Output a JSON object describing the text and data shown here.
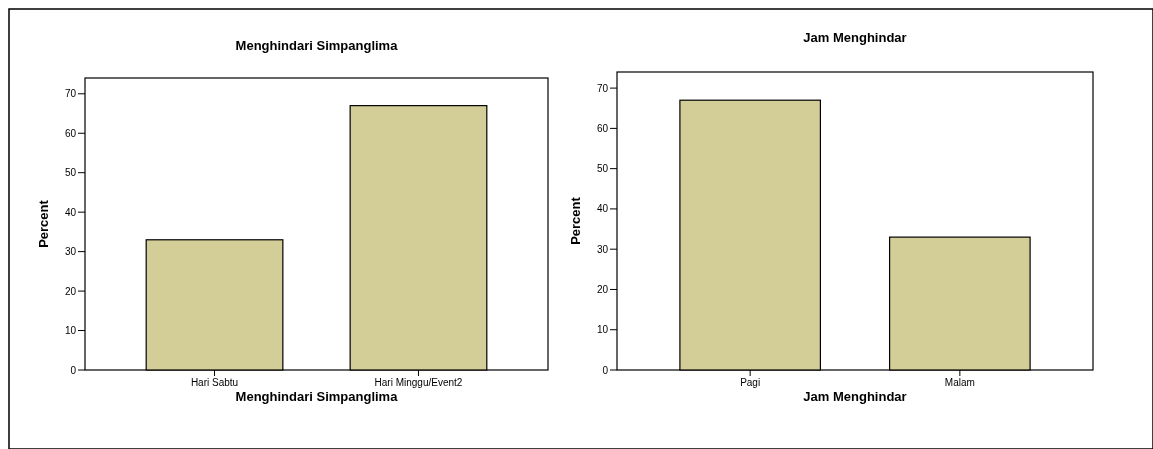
{
  "chart_data": [
    {
      "type": "bar",
      "title": "Menghindari Simpanglima",
      "xlabel": "Menghindari Simpanglima",
      "ylabel": "Percent",
      "categories": [
        "Hari Sabtu",
        "Hari Minggu/Event2"
      ],
      "values": [
        33,
        67
      ],
      "color": "#d3ce97",
      "ylim": [
        0,
        74
      ],
      "yticks": [
        0,
        10,
        20,
        30,
        40,
        50,
        60,
        70
      ],
      "grid": false
    },
    {
      "type": "bar",
      "title": "Jam Menghindar",
      "xlabel": "Jam Menghindar",
      "ylabel": "Percent",
      "categories": [
        "Pagi",
        "Malam"
      ],
      "values": [
        67,
        33
      ],
      "color": "#d3ce97",
      "ylim": [
        0,
        74
      ],
      "yticks": [
        0,
        10,
        20,
        30,
        40,
        50,
        60,
        70
      ],
      "grid": false
    }
  ]
}
